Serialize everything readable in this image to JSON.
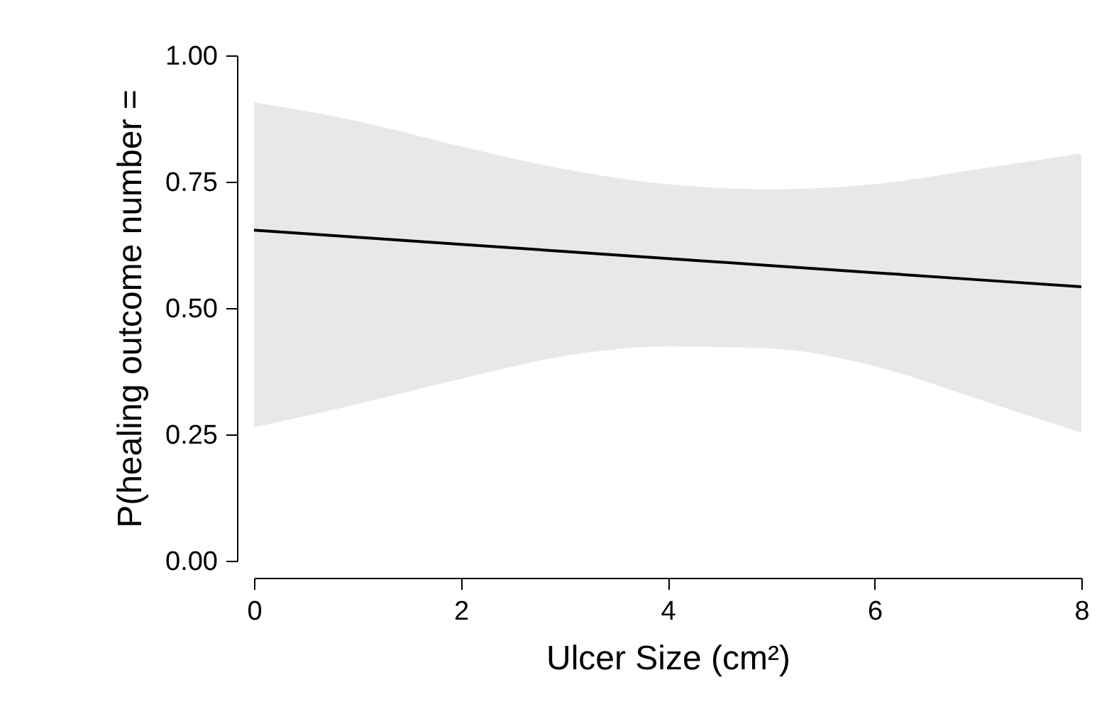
{
  "chart_data": {
    "type": "line",
    "xlabel": "Ulcer Size (cm²)",
    "ylabel": "P(healing outcome number =",
    "x": [
      0,
      1,
      2,
      3,
      4,
      5,
      6,
      7,
      8
    ],
    "series": [
      {
        "color": "#000000",
        "values": [
          0.654,
          0.64,
          0.626,
          0.612,
          0.598,
          0.584,
          0.57,
          0.556,
          0.542
        ],
        "lower": [
          0.264,
          0.31,
          0.36,
          0.405,
          0.424,
          0.42,
          0.385,
          0.32,
          0.253
        ],
        "upper": [
          0.907,
          0.87,
          0.82,
          0.775,
          0.745,
          0.735,
          0.745,
          0.775,
          0.806
        ]
      }
    ],
    "xlim": [
      0,
      8
    ],
    "xticks": [
      0,
      2,
      4,
      6,
      8
    ],
    "ylim": [
      0,
      1
    ],
    "yticks": [
      {
        "value": 0,
        "label": "0.00"
      },
      {
        "value": 0.25,
        "label": "0.25"
      },
      {
        "value": 0.5,
        "label": "0.50"
      },
      {
        "value": 0.75,
        "label": "0.75"
      },
      {
        "value": 1,
        "label": "1.00"
      }
    ],
    "grid": false,
    "line_style": "solid",
    "marker": "none"
  }
}
